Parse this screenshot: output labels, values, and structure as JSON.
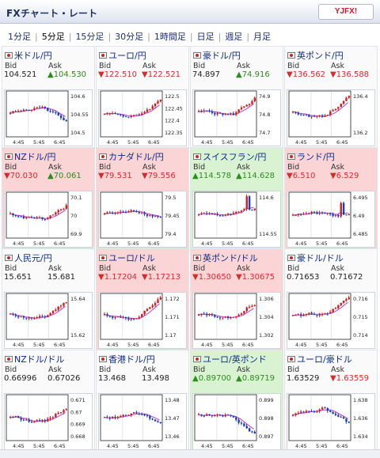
{
  "header": {
    "title": "FXチャート・レート",
    "logo_text": "YJFX!"
  },
  "tabs": [
    {
      "label": "1分足"
    },
    {
      "label": "5分足",
      "active": true
    },
    {
      "label": "15分足"
    },
    {
      "label": "30分足"
    },
    {
      "label": "1時間足"
    },
    {
      "label": "日足"
    },
    {
      "label": "週足"
    },
    {
      "label": "月足"
    }
  ],
  "time_labels": [
    "4:45",
    "5:45",
    "6:45"
  ],
  "panels": [
    {
      "pair": "米ドル/円",
      "state": "neutral",
      "bid_label": "Bid",
      "ask_label": "Ask",
      "bid": "104.521",
      "ask": "▲104.530",
      "bid_color": "black",
      "ask_color": "green",
      "y_ticks": [
        "104.6",
        "104.55",
        "104.5"
      ],
      "trend": "down"
    },
    {
      "pair": "ユーロ/円",
      "state": "neutral",
      "bid_label": "Bid",
      "ask_label": "Ask",
      "bid": "▼122.510",
      "ask": "▼122.521",
      "bid_color": "red",
      "ask_color": "red",
      "y_ticks": [
        "122.5",
        "122.45",
        "122.4",
        "122.35"
      ],
      "trend": "up"
    },
    {
      "pair": "豪ドル/円",
      "state": "neutral",
      "bid_label": "Bid",
      "ask_label": "Ask",
      "bid": "74.897",
      "ask": "▲74.916",
      "bid_color": "black",
      "ask_color": "green",
      "y_ticks": [
        "74.9",
        "74.8",
        "74.7"
      ],
      "trend": "up"
    },
    {
      "pair": "英ポンド/円",
      "state": "neutral",
      "bid_label": "Bid",
      "ask_label": "Ask",
      "bid": "▼136.562",
      "ask": "▼136.588",
      "bid_color": "red",
      "ask_color": "red",
      "y_ticks": [
        "136.4",
        "136.2"
      ],
      "trend": "up"
    },
    {
      "pair": "NZドル/円",
      "state": "down",
      "bid_label": "Bid",
      "ask_label": "Ask",
      "bid": "▼70.030",
      "ask": "▲70.061",
      "bid_color": "red",
      "ask_color": "green",
      "y_ticks": [
        "70.1",
        "70",
        "69.9"
      ],
      "trend": "up"
    },
    {
      "pair": "カナダドル/円",
      "state": "down",
      "bid_label": "Bid",
      "ask_label": "Ask",
      "bid": "▼79.531",
      "ask": "▼79.556",
      "bid_color": "red",
      "ask_color": "red",
      "y_ticks": [
        "79.5",
        "79.45",
        "79.4"
      ],
      "trend": "flat"
    },
    {
      "pair": "スイスフラン/円",
      "state": "up",
      "bid_label": "Bid",
      "ask_label": "Ask",
      "bid": "▲114.578",
      "ask": "▲114.628",
      "bid_color": "green",
      "ask_color": "green",
      "y_ticks": [
        "114.6",
        "114.55"
      ],
      "trend": "spike"
    },
    {
      "pair": "ランド/円",
      "state": "down",
      "bid_label": "Bid",
      "ask_label": "Ask",
      "bid": "▼6.510",
      "ask": "▼6.529",
      "bid_color": "red",
      "ask_color": "red",
      "y_ticks": [
        "6.495",
        "6.49",
        "6.485"
      ],
      "trend": "spike"
    },
    {
      "pair": "人民元/円",
      "state": "neutral",
      "bid_label": "Bid",
      "ask_label": "Ask",
      "bid": "15.651",
      "ask": "15.681",
      "bid_color": "black",
      "ask_color": "black",
      "y_ticks": [
        "15.64",
        "15.62"
      ],
      "trend": "up"
    },
    {
      "pair": "ユーロ/ドル",
      "state": "down",
      "bid_label": "Bid",
      "ask_label": "Ask",
      "bid": "▼1.17204",
      "ask": "▼1.17213",
      "bid_color": "red",
      "ask_color": "red",
      "y_ticks": [
        "1.172",
        "1.171",
        "1.17"
      ],
      "trend": "up"
    },
    {
      "pair": "英ポンド/ドル",
      "state": "down",
      "bid_label": "Bid",
      "ask_label": "Ask",
      "bid": "▼1.30650",
      "ask": "▼1.30675",
      "bid_color": "red",
      "ask_color": "red",
      "y_ticks": [
        "1.306",
        "1.304",
        "1.302"
      ],
      "trend": "up"
    },
    {
      "pair": "豪ドル/ドル",
      "state": "neutral",
      "bid_label": "Bid",
      "ask_label": "Ask",
      "bid": "0.71653",
      "ask": "0.71672",
      "bid_color": "black",
      "ask_color": "black",
      "y_ticks": [
        "0.716",
        "0.715",
        "0.714"
      ],
      "trend": "up"
    },
    {
      "pair": "NZドル/ドル",
      "state": "neutral",
      "bid_label": "Bid",
      "ask_label": "Ask",
      "bid": "0.66996",
      "ask": "0.67026",
      "bid_color": "black",
      "ask_color": "black",
      "y_ticks": [
        "0.671",
        "0.67",
        "0.669",
        "0.668"
      ],
      "trend": "up"
    },
    {
      "pair": "香港ドル/円",
      "state": "neutral",
      "bid_label": "Bid",
      "ask_label": "Ask",
      "bid": "13.468",
      "ask": "13.498",
      "bid_color": "black",
      "ask_color": "black",
      "y_ticks": [
        "13.48",
        "13.47",
        "13.46"
      ],
      "trend": "down"
    },
    {
      "pair": "ユーロ/英ポンド",
      "state": "up",
      "bid_label": "Bid",
      "ask_label": "Ask",
      "bid": "▲0.89700",
      "ask": "▲0.89719",
      "bid_color": "green",
      "ask_color": "green",
      "y_ticks": [
        "0.899",
        "0.898",
        "0.897"
      ],
      "trend": "down"
    },
    {
      "pair": "ユーロ/豪ドル",
      "state": "neutral",
      "bid_label": "Bid",
      "ask_label": "Ask",
      "bid": "1.63529",
      "ask": "▼1.63559",
      "bid_color": "black",
      "ask_color": "red",
      "y_ticks": [
        "1.638",
        "1.636",
        "1.634"
      ],
      "trend": "down"
    }
  ],
  "colors": {
    "up_bg": "#d9f3d2",
    "down_bg": "#fbd5d6",
    "candle_up": "#cc1e1e",
    "candle_down": "#1f3cb8",
    "ma_line": "#c23bd6"
  }
}
